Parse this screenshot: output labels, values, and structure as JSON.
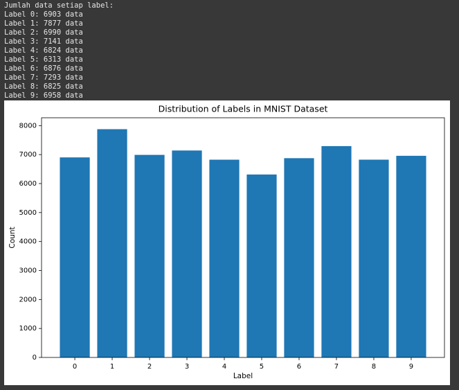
{
  "output_lines": [
    "Jumlah data setiap label:",
    "Label 0: 6903 data",
    "Label 1: 7877 data",
    "Label 2: 6990 data",
    "Label 3: 7141 data",
    "Label 4: 6824 data",
    "Label 5: 6313 data",
    "Label 6: 6876 data",
    "Label 7: 7293 data",
    "Label 8: 6825 data",
    "Label 9: 6958 data"
  ],
  "chart_data": {
    "type": "bar",
    "title": "Distribution of Labels in MNIST Dataset",
    "x_label": "Label",
    "y_label": "Count",
    "categories": [
      "0",
      "1",
      "2",
      "3",
      "4",
      "5",
      "6",
      "7",
      "8",
      "9"
    ],
    "values": [
      6903,
      7877,
      6990,
      7141,
      6824,
      6313,
      6876,
      7293,
      6825,
      6958
    ],
    "color": "#1f77b4",
    "ylim": [
      0,
      8270.85
    ],
    "yticks": [
      0,
      1000,
      2000,
      3000,
      4000,
      5000,
      6000,
      7000,
      8000
    ],
    "grid": false
  }
}
